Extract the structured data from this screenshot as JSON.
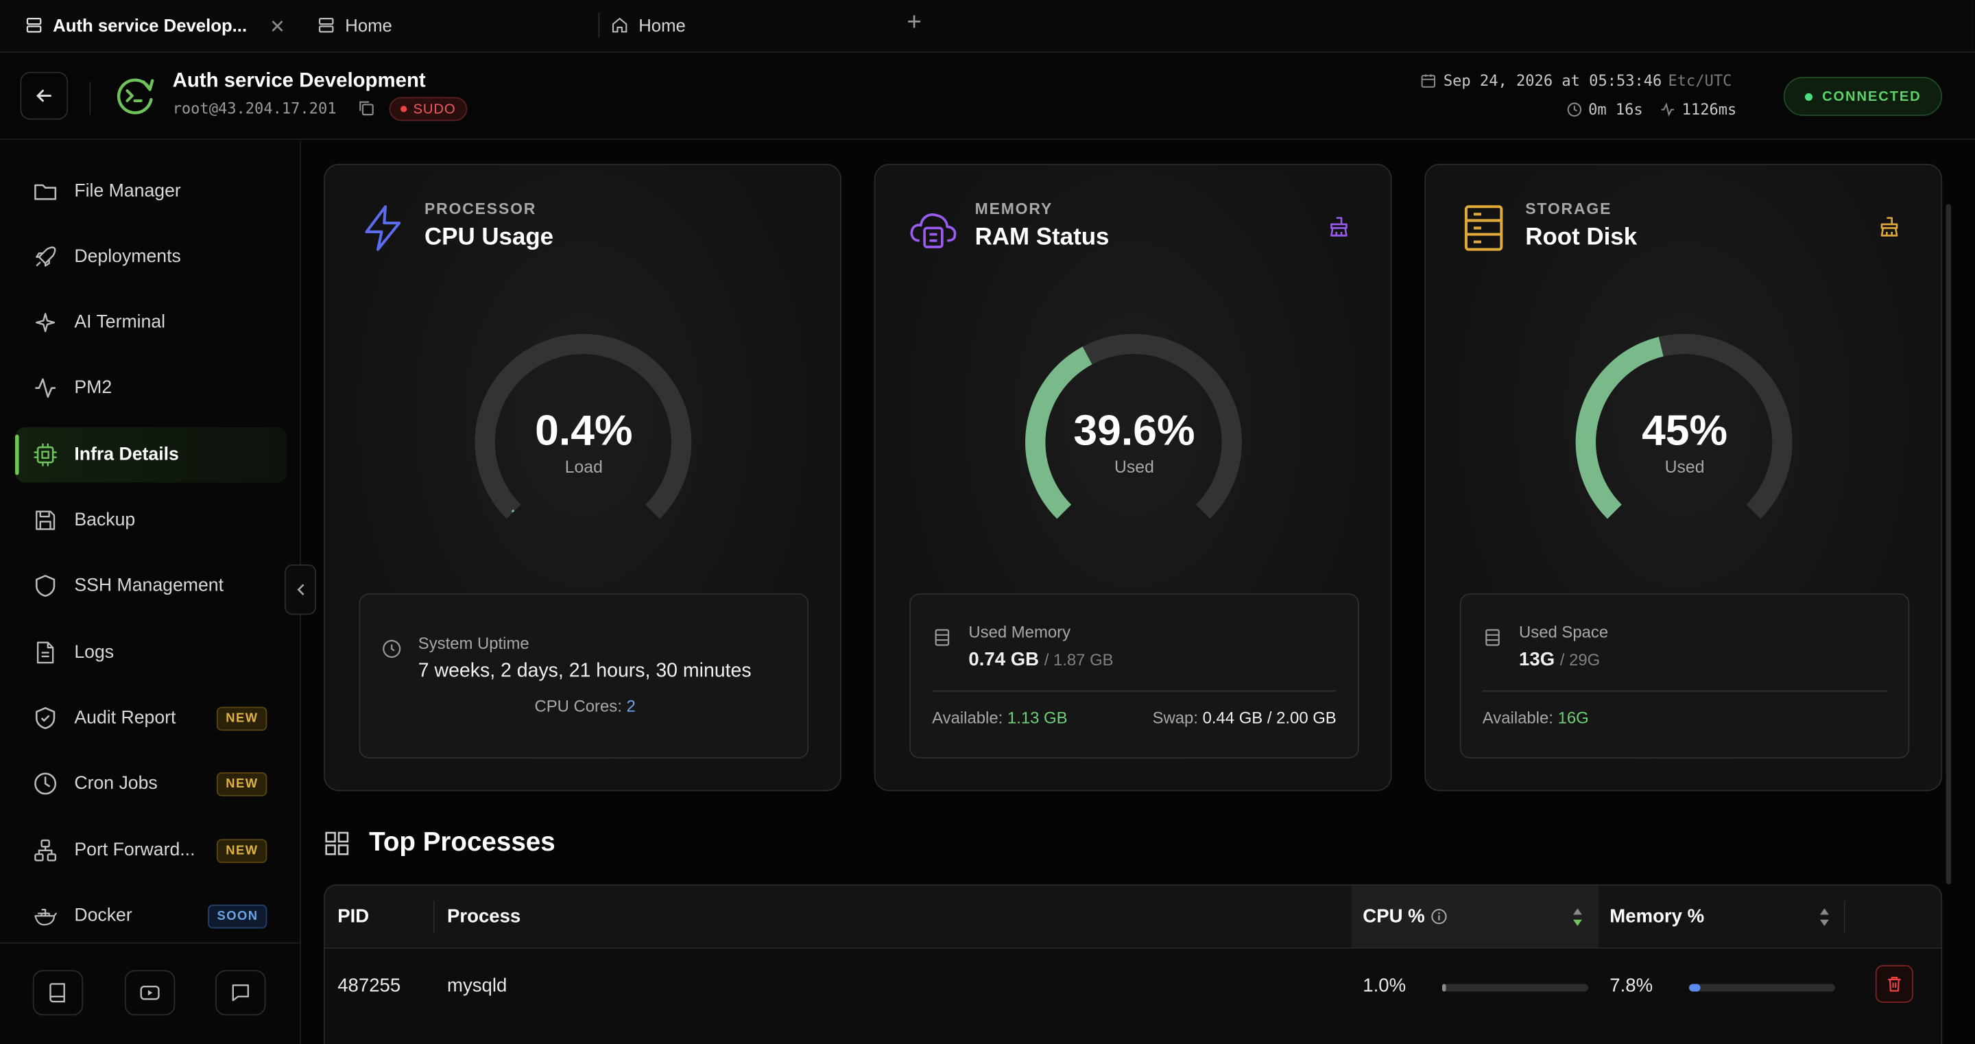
{
  "tabs": [
    {
      "label": "Auth service Develop...",
      "active": true
    },
    {
      "label": "Home",
      "active": false
    },
    {
      "label": "Home",
      "active": false
    }
  ],
  "header": {
    "title": "Auth service Development",
    "host": "root@43.204.17.201",
    "sudo_label": "SUDO",
    "datetime": "Sep 24, 2026 at 05:53:46",
    "timezone": "Etc/UTC",
    "elapsed": "0m 16s",
    "latency": "1126ms",
    "status": "CONNECTED"
  },
  "sidebar": {
    "items": [
      {
        "label": "File Manager",
        "icon": "folder-icon"
      },
      {
        "label": "Deployments",
        "icon": "rocket-icon"
      },
      {
        "label": "AI Terminal",
        "icon": "sparkle-icon"
      },
      {
        "label": "PM2",
        "icon": "activity-icon"
      },
      {
        "label": "Infra Details",
        "icon": "cpu-icon",
        "active": true
      },
      {
        "label": "Backup",
        "icon": "save-icon"
      },
      {
        "label": "SSH Management",
        "icon": "shield-icon"
      },
      {
        "label": "Logs",
        "icon": "file-text-icon"
      },
      {
        "label": "Audit Report",
        "icon": "shield-check-icon",
        "badge": "NEW"
      },
      {
        "label": "Cron Jobs",
        "icon": "clock-icon",
        "badge": "NEW"
      },
      {
        "label": "Port Forward...",
        "icon": "network-icon",
        "badge": "NEW"
      },
      {
        "label": "Docker",
        "icon": "docker-icon",
        "badge": "SOON"
      }
    ]
  },
  "cards": {
    "cpu": {
      "kicker": "PROCESSOR",
      "title": "CPU Usage",
      "value": "0.4%",
      "value_pct": 0.4,
      "sub": "Load",
      "info_label": "System Uptime",
      "info_value": "7 weeks, 2 days, 21 hours, 30 minutes",
      "cores_label": "CPU Cores:",
      "cores": "2",
      "color": "#5b6cf0"
    },
    "memory": {
      "kicker": "MEMORY",
      "title": "RAM Status",
      "value": "39.6%",
      "value_pct": 39.6,
      "sub": "Used",
      "info_label": "Used Memory",
      "used": "0.74 GB",
      "total": "/ 1.87 GB",
      "available_label": "Available:",
      "available": "1.13 GB",
      "swap_label": "Swap:",
      "swap": "0.44 GB / 2.00 GB",
      "color": "#9a5cf0"
    },
    "storage": {
      "kicker": "STORAGE",
      "title": "Root Disk",
      "value": "45%",
      "value_pct": 45,
      "sub": "Used",
      "info_label": "Used Space",
      "used": "13G",
      "total": "/ 29G",
      "available_label": "Available:",
      "available": "16G",
      "color": "#e0a93a"
    }
  },
  "processes": {
    "title": "Top Processes",
    "columns": [
      "PID",
      "Process",
      "CPU %",
      "Memory %"
    ],
    "rows": [
      {
        "pid": "487255",
        "process": "mysqld",
        "cpu": "1.0%",
        "cpu_pct": 1.0,
        "mem": "7.8%",
        "mem_pct": 7.8
      }
    ]
  },
  "colors": {
    "accent_green": "#6fc35a",
    "gauge_green": "#79b98a",
    "danger": "#ef4444"
  }
}
